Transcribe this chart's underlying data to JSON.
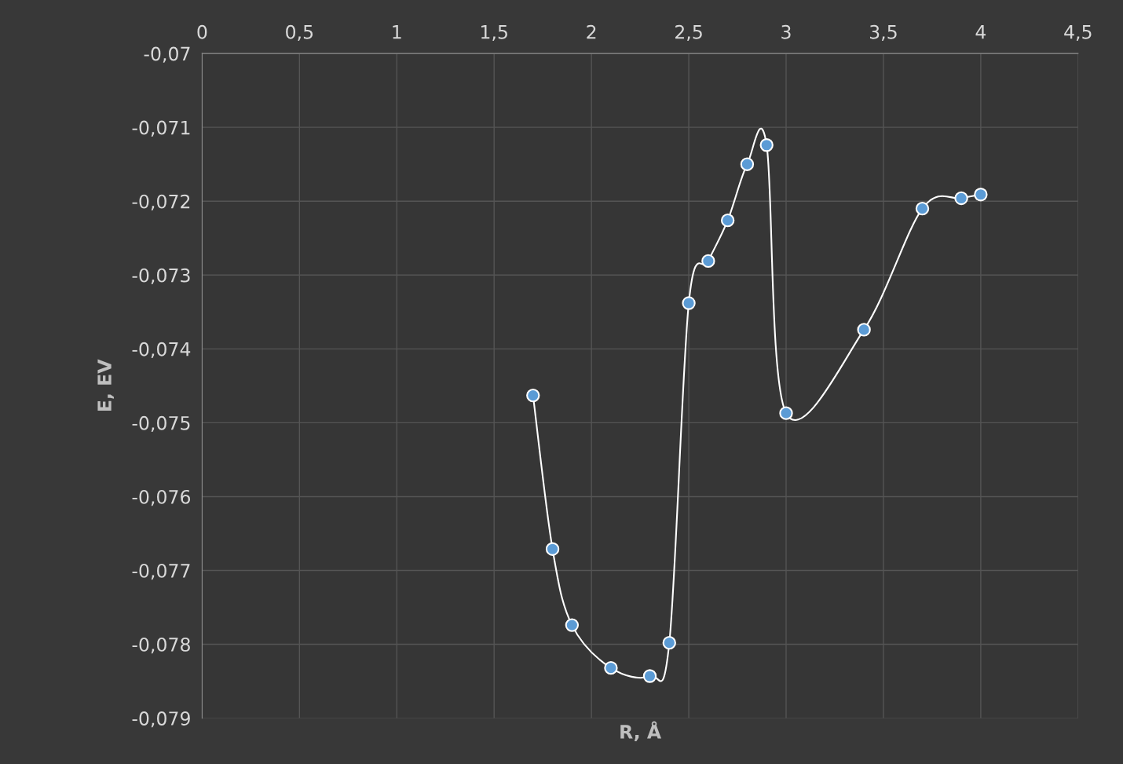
{
  "chart_data": {
    "type": "line",
    "xlabel": "R, Å",
    "ylabel": "E, EV",
    "marker": "circle",
    "line_style": "solid",
    "grid": true,
    "legend": false,
    "x": [
      1.7,
      1.8,
      1.9,
      2.1,
      2.3,
      2.4,
      2.5,
      2.6,
      2.7,
      2.8,
      2.9,
      3.0,
      3.4,
      3.7,
      3.9,
      4.0
    ],
    "series": [
      {
        "color": "#5b9bd5",
        "values": [
          -0.07463,
          -0.07671,
          -0.07774,
          -0.07832,
          -0.07843,
          -0.07798,
          -0.07338,
          -0.07281,
          -0.07226,
          -0.0715,
          -0.07124,
          -0.07487,
          -0.07374,
          -0.0721,
          -0.07196,
          -0.07191
        ]
      }
    ],
    "xlim": [
      0,
      4.5
    ],
    "xticks": [
      0,
      {
        "value": 0.5,
        "label": "0,5"
      },
      1,
      {
        "value": 1.5,
        "label": "1,5"
      },
      2,
      {
        "value": 2.5,
        "label": "2,5"
      },
      3,
      {
        "value": 3.5,
        "label": "3,5"
      },
      4,
      {
        "value": 4.5,
        "label": "4,5"
      }
    ],
    "ylim": [
      -0.079,
      -0.07
    ],
    "yticks": [
      {
        "value": -0.07,
        "label": "-0,07"
      },
      {
        "value": -0.071,
        "label": "-0,071"
      },
      {
        "value": -0.072,
        "label": "-0,072"
      },
      {
        "value": -0.073,
        "label": "-0,073"
      },
      {
        "value": -0.074,
        "label": "-0,074"
      },
      {
        "value": -0.075,
        "label": "-0,075"
      },
      {
        "value": -0.076,
        "label": "-0,076"
      },
      {
        "value": -0.077,
        "label": "-0,077"
      },
      {
        "value": -0.078,
        "label": "-0,078"
      },
      {
        "value": -0.079,
        "label": "-0,079"
      }
    ]
  }
}
